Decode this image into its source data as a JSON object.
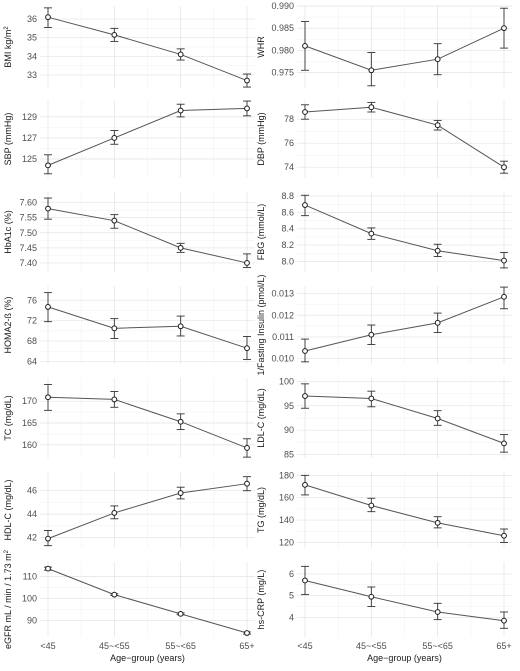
{
  "chart_data": [
    {
      "type": "line",
      "ylabel": "BMI kg/m²",
      "ylabel_main": "BMI kg/m",
      "ylabel_sup": "2",
      "categories": [
        "<45",
        "45~<55",
        "55~<65",
        "65+"
      ],
      "ylim": [
        32.3,
        36.7
      ],
      "yticks": [
        33,
        34,
        35,
        36
      ],
      "ytick_labels": [
        "33",
        "34",
        "35",
        "36"
      ],
      "values": [
        36.1,
        35.15,
        34.1,
        32.7
      ],
      "lower": [
        35.55,
        34.8,
        33.8,
        32.35
      ],
      "upper": [
        36.6,
        35.5,
        34.4,
        33.05
      ]
    },
    {
      "type": "line",
      "ylabel": "WHR",
      "categories": [
        "<45",
        "45~<55",
        "55~<65",
        "65+"
      ],
      "ylim": [
        0.9715,
        0.99
      ],
      "yticks": [
        0.975,
        0.98,
        0.985,
        0.99
      ],
      "ytick_labels": [
        "0.975",
        "0.980",
        "0.985",
        "0.990"
      ],
      "values": [
        0.981,
        0.9755,
        0.978,
        0.985
      ],
      "lower": [
        0.9755,
        0.972,
        0.9745,
        0.9805
      ],
      "upper": [
        0.9865,
        0.9795,
        0.9815,
        0.9895
      ]
    },
    {
      "type": "line",
      "ylabel": "SBP (mmHg)",
      "categories": [
        "<45",
        "45~<55",
        "55~<65",
        "65+"
      ],
      "ylim": [
        123.2,
        130.6
      ],
      "yticks": [
        125,
        127,
        129
      ],
      "ytick_labels": [
        "125",
        "127",
        "129"
      ],
      "values": [
        124.4,
        127.0,
        129.6,
        129.8
      ],
      "lower": [
        123.6,
        126.4,
        129.0,
        129.1
      ],
      "upper": [
        125.4,
        127.7,
        130.2,
        130.5
      ]
    },
    {
      "type": "line",
      "ylabel": "DBP (mmHg)",
      "categories": [
        "<45",
        "45~<55",
        "55~<65",
        "65+"
      ],
      "ylim": [
        73.1,
        79.6
      ],
      "yticks": [
        74,
        76,
        78
      ],
      "ytick_labels": [
        "74",
        "76",
        "78"
      ],
      "values": [
        78.6,
        79.0,
        77.5,
        74.0
      ],
      "lower": [
        78.0,
        78.6,
        77.1,
        73.5
      ],
      "upper": [
        79.2,
        79.4,
        77.9,
        74.5
      ]
    },
    {
      "type": "line",
      "ylabel": "HbA1c (%)",
      "categories": [
        "<45",
        "45~<55",
        "55~<65",
        "65+"
      ],
      "ylim": [
        7.37,
        7.635
      ],
      "yticks": [
        7.4,
        7.45,
        7.5,
        7.55,
        7.6
      ],
      "ytick_labels": [
        "7.40",
        "7.45",
        "7.50",
        "7.55",
        "7.60"
      ],
      "values": [
        7.58,
        7.54,
        7.45,
        7.4
      ],
      "lower": [
        7.545,
        7.515,
        7.435,
        7.385
      ],
      "upper": [
        7.615,
        7.56,
        7.465,
        7.43
      ]
    },
    {
      "type": "line",
      "ylabel": "FBG (mmol/L)",
      "categories": [
        "<45",
        "45~<55",
        "55~<65",
        "65+"
      ],
      "ylim": [
        7.87,
        8.85
      ],
      "yticks": [
        8.0,
        8.2,
        8.4,
        8.6,
        8.8
      ],
      "ytick_labels": [
        "8.0",
        "8.2",
        "8.4",
        "8.6",
        "8.8"
      ],
      "values": [
        8.69,
        8.34,
        8.13,
        8.01
      ],
      "lower": [
        8.56,
        8.27,
        8.06,
        7.92
      ],
      "upper": [
        8.81,
        8.41,
        8.21,
        8.11
      ]
    },
    {
      "type": "line",
      "ylabel": "HOMA2-ß (%)",
      "categories": [
        "<45",
        "45~<55",
        "55~<65",
        "65+"
      ],
      "ylim": [
        63.5,
        78.8
      ],
      "yticks": [
        64,
        68,
        72,
        76
      ],
      "ytick_labels": [
        "64",
        "68",
        "72",
        "76"
      ],
      "values": [
        74.7,
        70.5,
        70.9,
        66.6
      ],
      "lower": [
        71.8,
        68.5,
        69.0,
        64.4
      ],
      "upper": [
        77.5,
        72.4,
        72.9,
        68.9
      ]
    },
    {
      "type": "line",
      "ylabel": "1/Fasting Insulin (pmol/L)",
      "categories": [
        "<45",
        "45~<55",
        "55~<65",
        "65+"
      ],
      "ylim": [
        0.00975,
        0.01335
      ],
      "yticks": [
        0.01,
        0.011,
        0.012,
        0.013
      ],
      "ytick_labels": [
        "0.010",
        "0.011",
        "0.012",
        "0.013"
      ],
      "values": [
        0.01035,
        0.0111,
        0.01165,
        0.01285
      ],
      "lower": [
        0.00985,
        0.01065,
        0.0112,
        0.0123
      ],
      "upper": [
        0.0109,
        0.01155,
        0.0121,
        0.0133
      ]
    },
    {
      "type": "line",
      "ylabel": "TC (mg/dL)",
      "categories": [
        "<45",
        "45~<55",
        "55~<65",
        "65+"
      ],
      "ylim": [
        157.0,
        175.3
      ],
      "yticks": [
        160,
        165,
        170
      ],
      "ytick_labels": [
        "160",
        "165",
        "170"
      ],
      "values": [
        170.9,
        170.4,
        165.3,
        159.3
      ],
      "lower": [
        167.9,
        168.6,
        163.5,
        157.2
      ],
      "upper": [
        173.8,
        172.2,
        167.1,
        161.4
      ]
    },
    {
      "type": "line",
      "ylabel": "LDL-C (mg/dL)",
      "categories": [
        "<45",
        "45~<55",
        "55~<65",
        "65+"
      ],
      "ylim": [
        84.3,
        100.7
      ],
      "yticks": [
        85,
        90,
        95,
        100
      ],
      "ytick_labels": [
        "85",
        "90",
        "95",
        "100"
      ],
      "values": [
        97.0,
        96.5,
        92.4,
        87.3
      ],
      "lower": [
        94.5,
        94.8,
        91.0,
        85.5
      ],
      "upper": [
        99.5,
        98.0,
        94.0,
        89.1
      ]
    },
    {
      "type": "line",
      "ylabel": "HDL-C (mg/dL)",
      "categories": [
        "<45",
        "45~<55",
        "55~<65",
        "65+"
      ],
      "ylim": [
        41.1,
        47.6
      ],
      "yticks": [
        42,
        44,
        46
      ],
      "ytick_labels": [
        "42",
        "44",
        "46"
      ],
      "values": [
        41.9,
        44.1,
        45.8,
        46.6
      ],
      "lower": [
        41.3,
        43.6,
        45.3,
        46.0
      ],
      "upper": [
        42.6,
        44.7,
        46.3,
        47.2
      ]
    },
    {
      "type": "line",
      "ylabel": "TG (mg/dL)",
      "categories": [
        "<45",
        "45~<55",
        "55~<65",
        "65+"
      ],
      "ylim": [
        115,
        183
      ],
      "yticks": [
        120,
        140,
        160,
        180
      ],
      "ytick_labels": [
        "120",
        "140",
        "160",
        "180"
      ],
      "values": [
        171.5,
        153.0,
        137.5,
        126.0
      ],
      "lower": [
        162.5,
        147.5,
        133.0,
        120.0
      ],
      "upper": [
        180.0,
        159.5,
        143.0,
        132.0
      ]
    },
    {
      "type": "line",
      "ylabel": "eGFR mL / min / 1.73 m²",
      "ylabel_main": "eGFR mL / min / 1.73 m",
      "ylabel_sup": "2",
      "categories": [
        "<45",
        "45~<55",
        "55~<65",
        "65+"
      ],
      "ylim": [
        82.5,
        116.5
      ],
      "yticks": [
        90,
        100,
        110
      ],
      "ytick_labels": [
        "90",
        "100",
        "110"
      ],
      "values": [
        113.5,
        101.7,
        93.0,
        84.3
      ],
      "lower": [
        112.8,
        101.3,
        92.6,
        83.8
      ],
      "upper": [
        114.2,
        102.1,
        93.4,
        84.8
      ]
    },
    {
      "type": "line",
      "ylabel": "hs-CRP (mg/L)",
      "categories": [
        "<45",
        "45~<55",
        "55~<65",
        "65+"
      ],
      "ylim": [
        3.1,
        6.55
      ],
      "yticks": [
        4,
        5,
        6
      ],
      "ytick_labels": [
        "4",
        "5",
        "6"
      ],
      "values": [
        5.7,
        4.95,
        4.25,
        3.85
      ],
      "lower": [
        5.05,
        4.5,
        3.9,
        3.5
      ],
      "upper": [
        6.35,
        5.4,
        4.65,
        4.25
      ]
    }
  ],
  "x_axis": {
    "title": "Age−group (years)",
    "tick_labels": [
      "<45",
      "45~<55",
      "55~<65",
      "65+"
    ]
  }
}
